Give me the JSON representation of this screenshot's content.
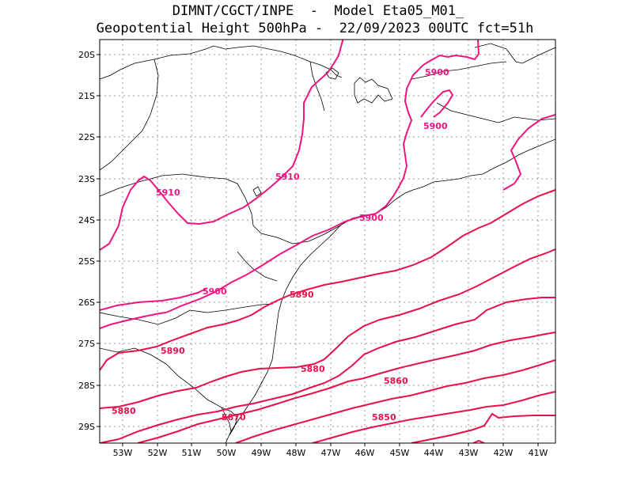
{
  "title_line1": "DIMNT/CGCT/INPE  -  Model Eta05_M01_",
  "title_line2": "Geopotential Height 500hPa -  22/09/2023 00UTC fct=51h",
  "colors": {
    "contour_north": "#f0147f",
    "contour_south": "#e8104a",
    "coast": "#000000",
    "grid": "#9a9a9a"
  },
  "lon_ticks": [
    "53W",
    "52W",
    "51W",
    "50W",
    "49W",
    "48W",
    "47W",
    "46W",
    "45W",
    "44W",
    "43W",
    "42W",
    "41W"
  ],
  "lat_ticks": [
    "20S",
    "21S",
    "22S",
    "23S",
    "24S",
    "25S",
    "26S",
    "27S",
    "28S",
    "29S"
  ],
  "contour_labels": [
    {
      "text": "5910",
      "id": "a"
    },
    {
      "text": "5910",
      "id": "b"
    },
    {
      "text": "5900",
      "id": "c"
    },
    {
      "text": "5900",
      "id": "d"
    },
    {
      "text": "5900",
      "id": "e"
    },
    {
      "text": "5900",
      "id": "f"
    },
    {
      "text": "5890",
      "id": "g"
    },
    {
      "text": "5890",
      "id": "h"
    },
    {
      "text": "5880",
      "id": "i"
    },
    {
      "text": "5880",
      "id": "j"
    },
    {
      "text": "5870",
      "id": "k"
    },
    {
      "text": "5860",
      "id": "l"
    },
    {
      "text": "5850",
      "id": "m"
    }
  ]
}
